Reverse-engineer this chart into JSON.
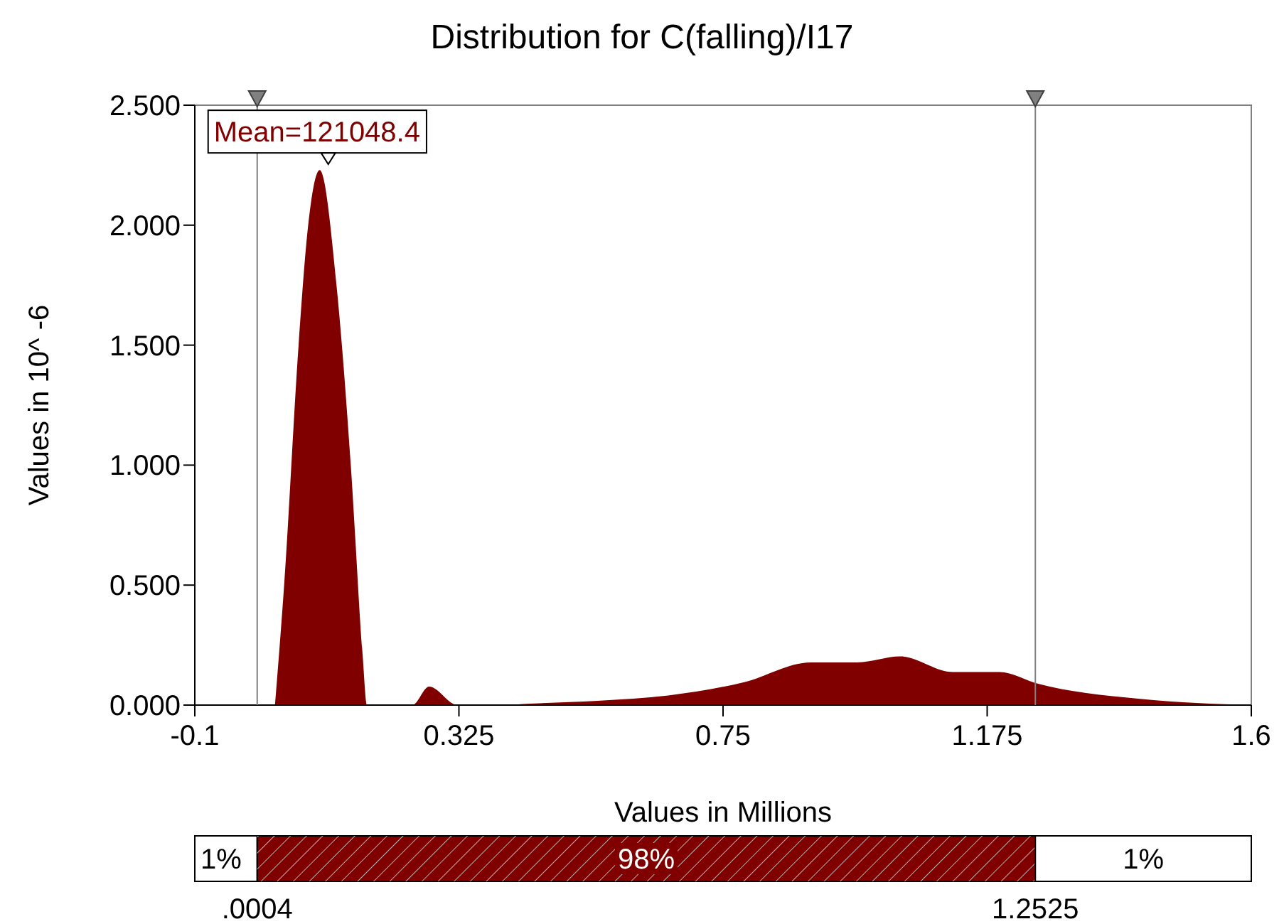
{
  "chart_data": {
    "type": "area",
    "title": "Distribution for C(falling)/I17",
    "xlabel": "Values in Millions",
    "ylabel": "Values in 10^ -6",
    "x": [
      0.029,
      0.044,
      0.067,
      0.082,
      0.101,
      0.128,
      0.151,
      0.17,
      0.177,
      0.25,
      0.277,
      0.323,
      0.4,
      0.433,
      0.548,
      0.662,
      0.783,
      0.891,
      0.966,
      1.035,
      1.12,
      1.195,
      1.257,
      1.424,
      1.6
    ],
    "series": [
      {
        "color": "#800000",
        "values": [
          0,
          0.51,
          1.5,
          1.99,
          2.23,
          1.75,
          1.0,
          0.21,
          0,
          0,
          0.077,
          0,
          0,
          0.005,
          0.018,
          0.04,
          0.095,
          0.178,
          0.178,
          0.203,
          0.138,
          0.138,
          0.089,
          0.025,
          0
        ]
      }
    ],
    "xlim": [
      -0.1,
      1.6
    ],
    "xticks": [
      -0.1,
      0.325,
      0.75,
      1.175,
      1.6
    ],
    "ylim": [
      0,
      2.5
    ],
    "yticks": [
      {
        "value": 0,
        "label": "0.000"
      },
      {
        "value": 0.5,
        "label": "0.500"
      },
      {
        "value": 1,
        "label": "1.000"
      },
      {
        "value": 1.5,
        "label": "1.500"
      },
      {
        "value": 2,
        "label": "2.000"
      },
      {
        "value": 2.5,
        "label": "2.500"
      }
    ],
    "grid": false,
    "annotations": [
      "Mean=121048.4",
      "1%",
      "98%",
      "1%",
      ".0004",
      "1.2525"
    ],
    "ref_lines": [
      {
        "axis": "x",
        "value": 0.0004,
        "color": "#808080"
      },
      {
        "axis": "x",
        "value": 1.2525,
        "color": "#808080"
      }
    ]
  }
}
